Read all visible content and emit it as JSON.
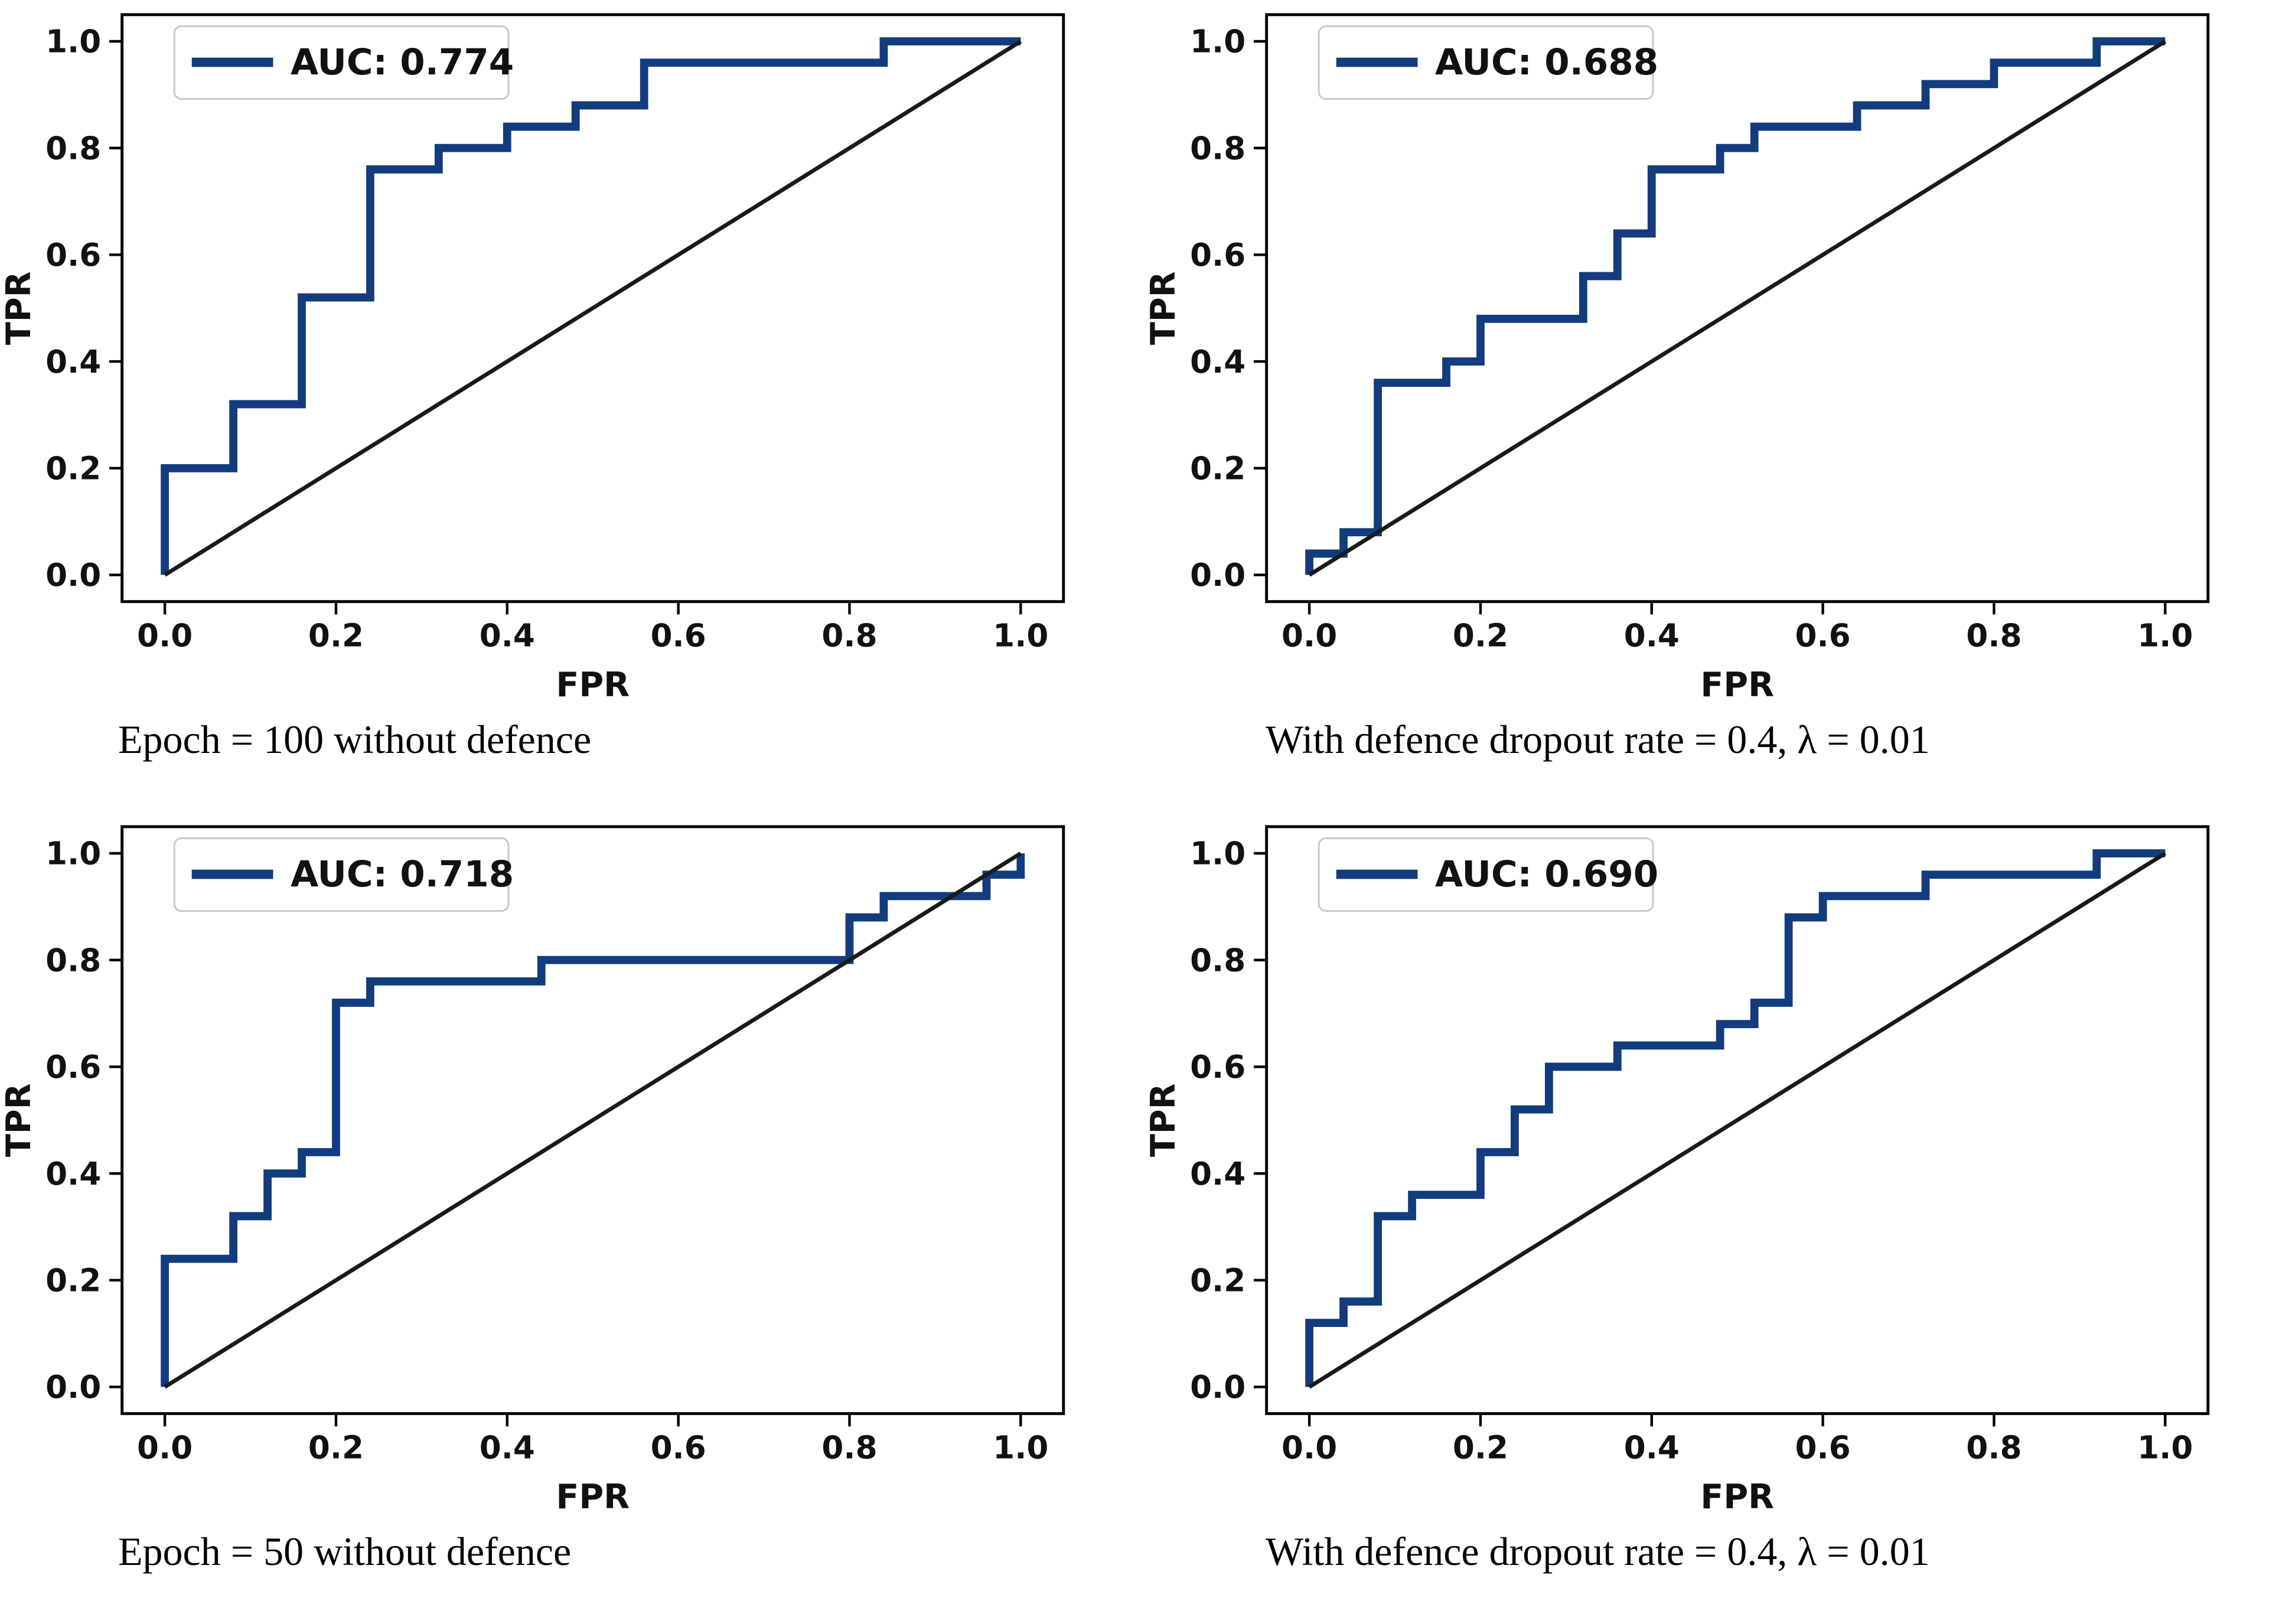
{
  "colors": {
    "roc_line": "#123c7d",
    "diagonal": "#1a1a1a",
    "spine": "#000000",
    "tick_label": "#111111",
    "legend_border": "#c8c8c8",
    "legend_text": "#111111",
    "background": "#ffffff"
  },
  "chart_data": [
    {
      "type": "line",
      "position": "top-left",
      "legend": "AUC: 0.774",
      "auc": 0.774,
      "caption": "Epoch = 100 without defence",
      "xlabel": "FPR",
      "ylabel": "TPR",
      "xlim": [
        -0.05,
        1.05
      ],
      "ylim": [
        -0.05,
        1.05
      ],
      "xticks": [
        0.0,
        0.2,
        0.4,
        0.6,
        0.8,
        1.0
      ],
      "yticks": [
        0.0,
        0.2,
        0.4,
        0.6,
        0.8,
        1.0
      ],
      "grid": false,
      "legend_position": "upper-left",
      "series": [
        {
          "name": "roc-curve",
          "x": [
            0,
            0,
            0.08,
            0.08,
            0.16,
            0.16,
            0.24,
            0.24,
            0.32,
            0.32,
            0.4,
            0.4,
            0.48,
            0.48,
            0.56,
            0.56,
            0.84,
            0.84,
            1.0
          ],
          "y": [
            0,
            0.2,
            0.2,
            0.32,
            0.32,
            0.52,
            0.52,
            0.76,
            0.76,
            0.8,
            0.8,
            0.84,
            0.84,
            0.88,
            0.88,
            0.96,
            0.96,
            1.0,
            1.0
          ]
        },
        {
          "name": "chance-diagonal",
          "x": [
            0,
            1
          ],
          "y": [
            0,
            1
          ]
        }
      ]
    },
    {
      "type": "line",
      "position": "top-right",
      "legend": "AUC: 0.688",
      "auc": 0.688,
      "caption": "With defence dropout rate = 0.4, λ = 0.01",
      "xlabel": "FPR",
      "ylabel": "TPR",
      "xlim": [
        -0.05,
        1.05
      ],
      "ylim": [
        -0.05,
        1.05
      ],
      "xticks": [
        0.0,
        0.2,
        0.4,
        0.6,
        0.8,
        1.0
      ],
      "yticks": [
        0.0,
        0.2,
        0.4,
        0.6,
        0.8,
        1.0
      ],
      "grid": false,
      "legend_position": "upper-left",
      "series": [
        {
          "name": "roc-curve",
          "x": [
            0,
            0,
            0.04,
            0.04,
            0.08,
            0.08,
            0.16,
            0.16,
            0.2,
            0.2,
            0.32,
            0.32,
            0.36,
            0.36,
            0.4,
            0.4,
            0.48,
            0.48,
            0.52,
            0.52,
            0.64,
            0.64,
            0.72,
            0.72,
            0.8,
            0.8,
            0.92,
            0.92,
            1.0
          ],
          "y": [
            0,
            0.04,
            0.04,
            0.08,
            0.08,
            0.36,
            0.36,
            0.4,
            0.4,
            0.48,
            0.48,
            0.56,
            0.56,
            0.64,
            0.64,
            0.76,
            0.76,
            0.8,
            0.8,
            0.84,
            0.84,
            0.88,
            0.88,
            0.92,
            0.92,
            0.96,
            0.96,
            1.0,
            1.0
          ]
        },
        {
          "name": "chance-diagonal",
          "x": [
            0,
            1
          ],
          "y": [
            0,
            1
          ]
        }
      ]
    },
    {
      "type": "line",
      "position": "bottom-left",
      "legend": "AUC: 0.718",
      "auc": 0.718,
      "caption": "Epoch = 50 without defence",
      "xlabel": "FPR",
      "ylabel": "TPR",
      "xlim": [
        -0.05,
        1.05
      ],
      "ylim": [
        -0.05,
        1.05
      ],
      "xticks": [
        0.0,
        0.2,
        0.4,
        0.6,
        0.8,
        1.0
      ],
      "yticks": [
        0.0,
        0.2,
        0.4,
        0.6,
        0.8,
        1.0
      ],
      "grid": false,
      "legend_position": "upper-left",
      "series": [
        {
          "name": "roc-curve",
          "x": [
            0,
            0,
            0.08,
            0.08,
            0.12,
            0.12,
            0.16,
            0.16,
            0.2,
            0.2,
            0.24,
            0.24,
            0.44,
            0.44,
            0.8,
            0.8,
            0.84,
            0.84,
            0.96,
            0.96,
            1.0,
            1.0
          ],
          "y": [
            0,
            0.24,
            0.24,
            0.32,
            0.32,
            0.4,
            0.4,
            0.44,
            0.44,
            0.72,
            0.72,
            0.76,
            0.76,
            0.8,
            0.8,
            0.88,
            0.88,
            0.92,
            0.92,
            0.96,
            0.96,
            1.0
          ]
        },
        {
          "name": "chance-diagonal",
          "x": [
            0,
            1
          ],
          "y": [
            0,
            1
          ]
        }
      ]
    },
    {
      "type": "line",
      "position": "bottom-right",
      "legend": "AUC: 0.690",
      "auc": 0.69,
      "caption": "With defence dropout rate = 0.4, λ = 0.01",
      "xlabel": "FPR",
      "ylabel": "TPR",
      "xlim": [
        -0.05,
        1.05
      ],
      "ylim": [
        -0.05,
        1.05
      ],
      "xticks": [
        0.0,
        0.2,
        0.4,
        0.6,
        0.8,
        1.0
      ],
      "yticks": [
        0.0,
        0.2,
        0.4,
        0.6,
        0.8,
        1.0
      ],
      "grid": false,
      "legend_position": "upper-left",
      "series": [
        {
          "name": "roc-curve",
          "x": [
            0,
            0,
            0.04,
            0.04,
            0.08,
            0.08,
            0.12,
            0.12,
            0.2,
            0.2,
            0.24,
            0.24,
            0.28,
            0.28,
            0.36,
            0.36,
            0.48,
            0.48,
            0.52,
            0.52,
            0.56,
            0.56,
            0.6,
            0.6,
            0.72,
            0.72,
            0.92,
            0.92,
            1.0
          ],
          "y": [
            0,
            0.12,
            0.12,
            0.16,
            0.16,
            0.32,
            0.32,
            0.36,
            0.36,
            0.44,
            0.44,
            0.52,
            0.52,
            0.6,
            0.6,
            0.64,
            0.64,
            0.68,
            0.68,
            0.72,
            0.72,
            0.88,
            0.88,
            0.92,
            0.92,
            0.96,
            0.96,
            1.0,
            1.0
          ]
        },
        {
          "name": "chance-diagonal",
          "x": [
            0,
            1
          ],
          "y": [
            0,
            1
          ]
        }
      ]
    }
  ]
}
